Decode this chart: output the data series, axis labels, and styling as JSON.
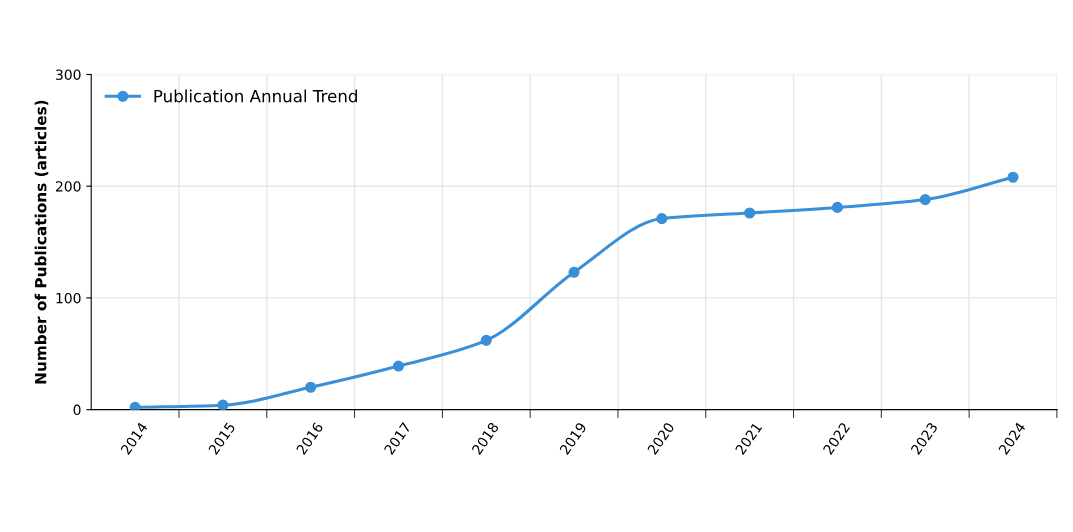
{
  "chart_data": {
    "type": "line",
    "ylabel": "Number of Publications (articles)",
    "categories": [
      "2014",
      "2015",
      "2016",
      "2017",
      "2018",
      "2019",
      "2020",
      "2021",
      "2022",
      "2023",
      "2024"
    ],
    "series": [
      {
        "name": "Publication Annual Trend",
        "color": "#3a8fd9",
        "values": [
          2,
          4,
          20,
          39,
          62,
          123,
          171,
          176,
          181,
          188,
          208
        ]
      }
    ],
    "ylim": [
      0,
      300
    ],
    "yticks": [
      0,
      100,
      200,
      300
    ],
    "grid": true,
    "legend": "top left",
    "marker": "circle",
    "line_style": "solid"
  }
}
